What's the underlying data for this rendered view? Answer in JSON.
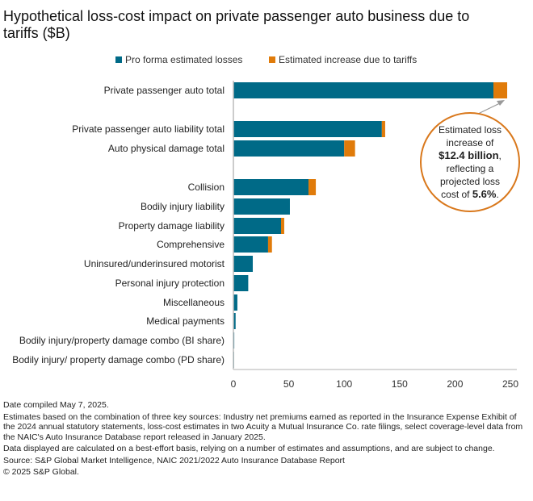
{
  "chart_data": {
    "type": "bar",
    "orientation": "horizontal",
    "stacked": true,
    "title": "Hypothetical loss-cost impact on private passenger auto business due to tariffs ($B)",
    "xlabel": "",
    "ylabel": "",
    "xlim": [
      0,
      250
    ],
    "xticks": [
      0,
      50,
      100,
      150,
      200,
      250
    ],
    "grid": false,
    "legend_position": "top-center",
    "categories": [
      "Private passenger auto total",
      "Private passenger auto liability total",
      "Auto physical damage total",
      "Collision",
      "Bodily injury liability",
      "Property damage liability",
      "Comprehensive",
      "Uninsured/underinsured motorist",
      "Personal injury protection",
      "Miscellaneous",
      "Medical payments",
      "Bodily injury/property damage combo (BI share)",
      "Bodily injury/ property damage combo (PD share)"
    ],
    "series": [
      {
        "name": "Pro forma estimated losses",
        "color": "#006a87",
        "values": [
          234.7,
          134.0,
          100.0,
          67.8,
          51.0,
          43.0,
          31.3,
          17.5,
          13.4,
          3.6,
          2.0,
          0.8,
          0.6
        ]
      },
      {
        "name": "Estimated increase due to tariffs",
        "color": "#e07b0a",
        "values": [
          12.4,
          3.0,
          9.8,
          6.6,
          0.0,
          2.9,
          3.5,
          0.0,
          0.0,
          0.0,
          0.0,
          0.0,
          0.0
        ]
      }
    ],
    "annotation": {
      "line1": "Estimated loss",
      "line2": "increase of",
      "bold1": "$12.4 billion",
      "line3": ",",
      "line4": "reflecting a",
      "line5": "projected loss",
      "line6": "cost of ",
      "bold2": "5.6%",
      "line7": "."
    }
  },
  "notes": [
    "Date compiled May 7, 2025.",
    "Estimates based on the combination of three key sources: Industry net premiums earned as reported in the Insurance Expense Exhibit of the 2024 annual statutory statements, loss-cost estimates in two Acuity a Mutual Insurance Co. rate filings, select coverage-level data from the NAIC's Auto Insurance Database report released in January 2025.",
    "Data displayed are calculated on a best-effort basis, relying on a number of estimates and assumptions, and are subject to change.",
    "Source: S&P Global Market Intelligence, NAIC 2021/2022 Auto Insurance Database Report",
    "© 2025 S&P Global."
  ]
}
